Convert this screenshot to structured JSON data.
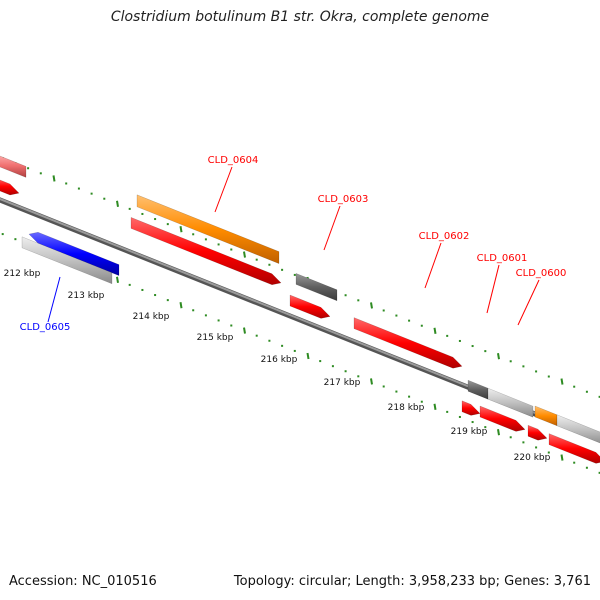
{
  "title": "Clostridium botulinum B1 str. Okra, complete genome",
  "footer": {
    "accession": "Accession: NC_010516",
    "stats": "Topology: circular; Length: 3,958,233 bp; Genes: 3,761"
  },
  "colors": {
    "cds_forward": "#ff0000",
    "cds_reverse": "#0000ff",
    "orange": "#ff8c00",
    "dark_gray": "#606060",
    "light_gray": "#c0c0c0",
    "pink": "#f07070",
    "backbone": "#7f7f7f",
    "tick": "#2e8b22"
  },
  "axis": {
    "unit": "kbp",
    "ticks": [
      "212 kbp",
      "213 kbp",
      "214 kbp",
      "215 kbp",
      "216 kbp",
      "217 kbp",
      "218 kbp",
      "219 kbp",
      "220 kbp"
    ]
  },
  "gene_labels": [
    {
      "text": "CLD_0604",
      "strand": "forward"
    },
    {
      "text": "CLD_0603",
      "strand": "forward"
    },
    {
      "text": "CLD_0602",
      "strand": "forward"
    },
    {
      "text": "CLD_0601",
      "strand": "forward"
    },
    {
      "text": "CLD_0600",
      "strand": "forward"
    },
    {
      "text": "CLD_0605",
      "strand": "reverse"
    }
  ]
}
